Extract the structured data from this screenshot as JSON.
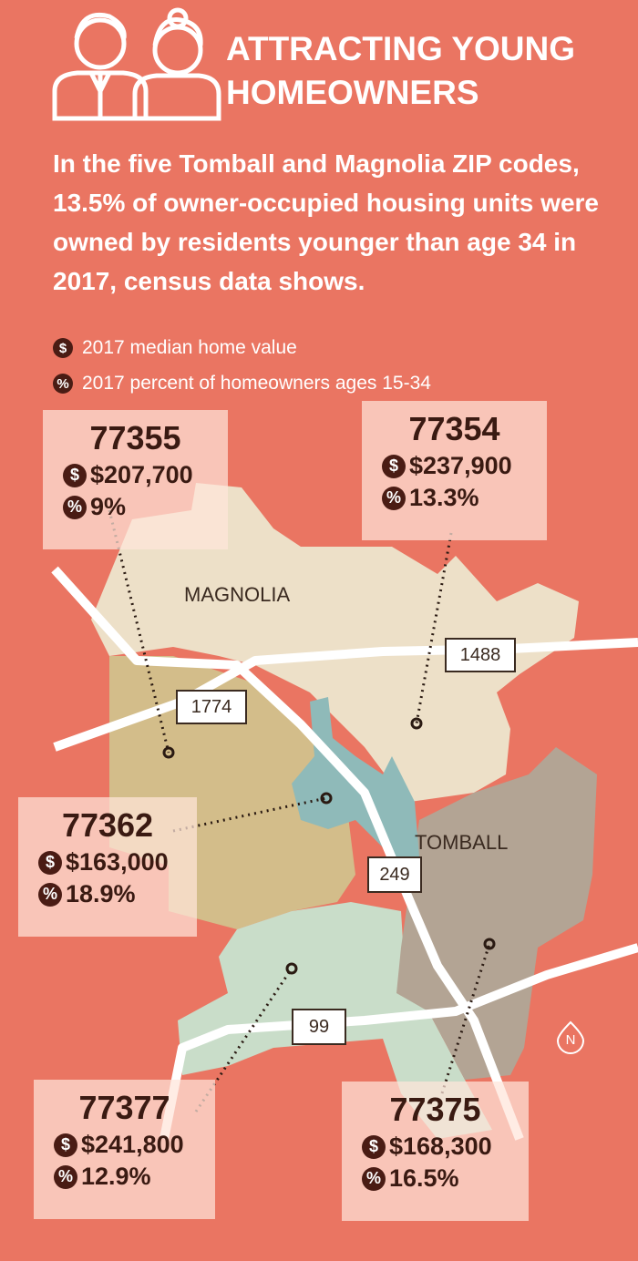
{
  "header": {
    "title": "ATTRACTING YOUNG HOMEOWNERS",
    "description": "In the five Tomball and Magnolia ZIP codes, 13.5% of owner-occupied housing units were owned by residents younger than age 34 in 2017, census data shows."
  },
  "legend": [
    {
      "symbol": "$",
      "label": "2017 median home value"
    },
    {
      "symbol": "%",
      "label": "2017 percent of homeowners ages 15-34"
    }
  ],
  "places": [
    "MAGNOLIA",
    "TOMBALL"
  ],
  "roads": [
    "1488",
    "1774",
    "249",
    "99"
  ],
  "compass": "N",
  "zip_codes": [
    {
      "zip": "77355",
      "home_value": "$207,700",
      "percent": "9%"
    },
    {
      "zip": "77354",
      "home_value": "$237,900",
      "percent": "13.3%"
    },
    {
      "zip": "77362",
      "home_value": "$163,000",
      "percent": "18.9%"
    },
    {
      "zip": "77377",
      "home_value": "$241,800",
      "percent": "12.9%"
    },
    {
      "zip": "77375",
      "home_value": "$168,300",
      "percent": "16.5%"
    }
  ]
}
